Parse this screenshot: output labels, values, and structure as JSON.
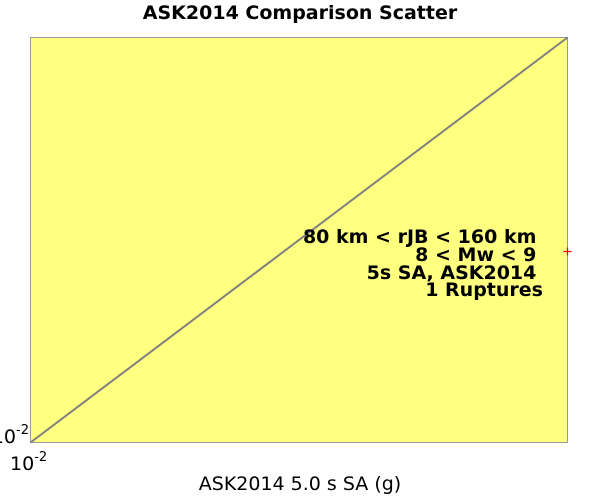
{
  "chart_data": {
    "type": "scatter",
    "title": "ASK2014 Comparison Scatter",
    "xlabel": "ASK2014 5.0 s SA (g)",
    "ylabel": "",
    "x_scale": "log",
    "y_scale": "log",
    "x_tick_labels": [
      {
        "base": "10",
        "exp": "-2"
      }
    ],
    "y_tick_labels": [
      {
        "base": "10",
        "exp": "-2"
      }
    ],
    "xlim": [
      0.01,
      0.0186
    ],
    "ylim": [
      0.01,
      0.0186
    ],
    "reference_line": "y = x",
    "annotation": [
      "80 km < rJB < 160 km",
      "8 < Mw < 9",
      "5s SA, ASK2014",
      "1 Ruptures"
    ],
    "series": [
      {
        "marker": "+",
        "points": [
          {
            "x": 0.0186,
            "y": 0.0134
          }
        ]
      }
    ],
    "colors": {
      "plot_background": "#ffff80",
      "reference_line": "#808080",
      "marker": "#ff0000"
    },
    "grid": false,
    "legend": "none"
  }
}
